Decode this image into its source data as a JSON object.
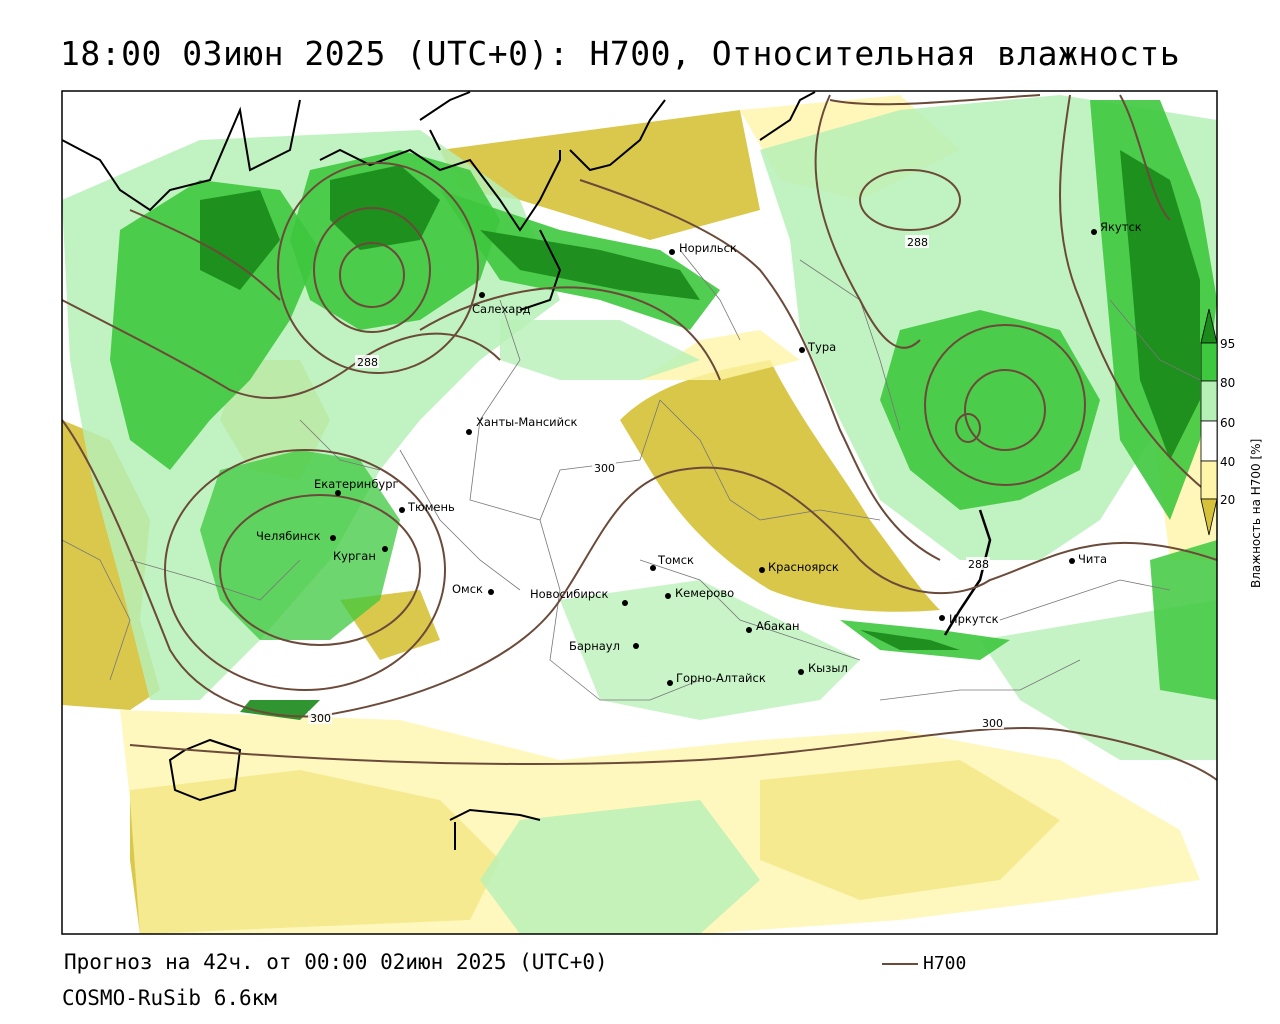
{
  "title": "18:00 03июн 2025 (UTC+0): H700, Относительная влажность",
  "forecast_line": "Прогноз на 42ч. от 00:00 02июн 2025 (UTC+0)",
  "model_line": "COSMO-RuSib 6.6км",
  "legend_line_label": "H700",
  "legend_line_color": "#6b4a3a",
  "colorbar": {
    "title": "Влажность на H700 [%]",
    "ticks": [
      "95",
      "80",
      "60",
      "40",
      "20"
    ],
    "bands": [
      {
        "range": ">95",
        "color": "#1a8a1a"
      },
      {
        "range": "80-95",
        "color": "#3ec83e"
      },
      {
        "range": "60-80",
        "color": "#b6f0b6"
      },
      {
        "range": "40-60",
        "color": "#ffffff"
      },
      {
        "range": "20-40",
        "color": "#fff5a8"
      },
      {
        "range": "<20",
        "color": "#d6c23a"
      }
    ]
  },
  "contour_labels": [
    "288",
    "288",
    "288",
    "300",
    "300",
    "300"
  ],
  "cities": [
    {
      "name": "Якутск"
    },
    {
      "name": "Норильск"
    },
    {
      "name": "Салехард"
    },
    {
      "name": "Тура"
    },
    {
      "name": "Ханты-Мансийск"
    },
    {
      "name": "Екатеринбург"
    },
    {
      "name": "Тюмень"
    },
    {
      "name": "Челябинск"
    },
    {
      "name": "Курган"
    },
    {
      "name": "Омск"
    },
    {
      "name": "Новосибирск"
    },
    {
      "name": "Томск"
    },
    {
      "name": "Кемерово"
    },
    {
      "name": "Красноярск"
    },
    {
      "name": "Абакан"
    },
    {
      "name": "Барнаул"
    },
    {
      "name": "Горно-Алтайск"
    },
    {
      "name": "Кызыл"
    },
    {
      "name": "Иркутск"
    },
    {
      "name": "Чита"
    }
  ]
}
